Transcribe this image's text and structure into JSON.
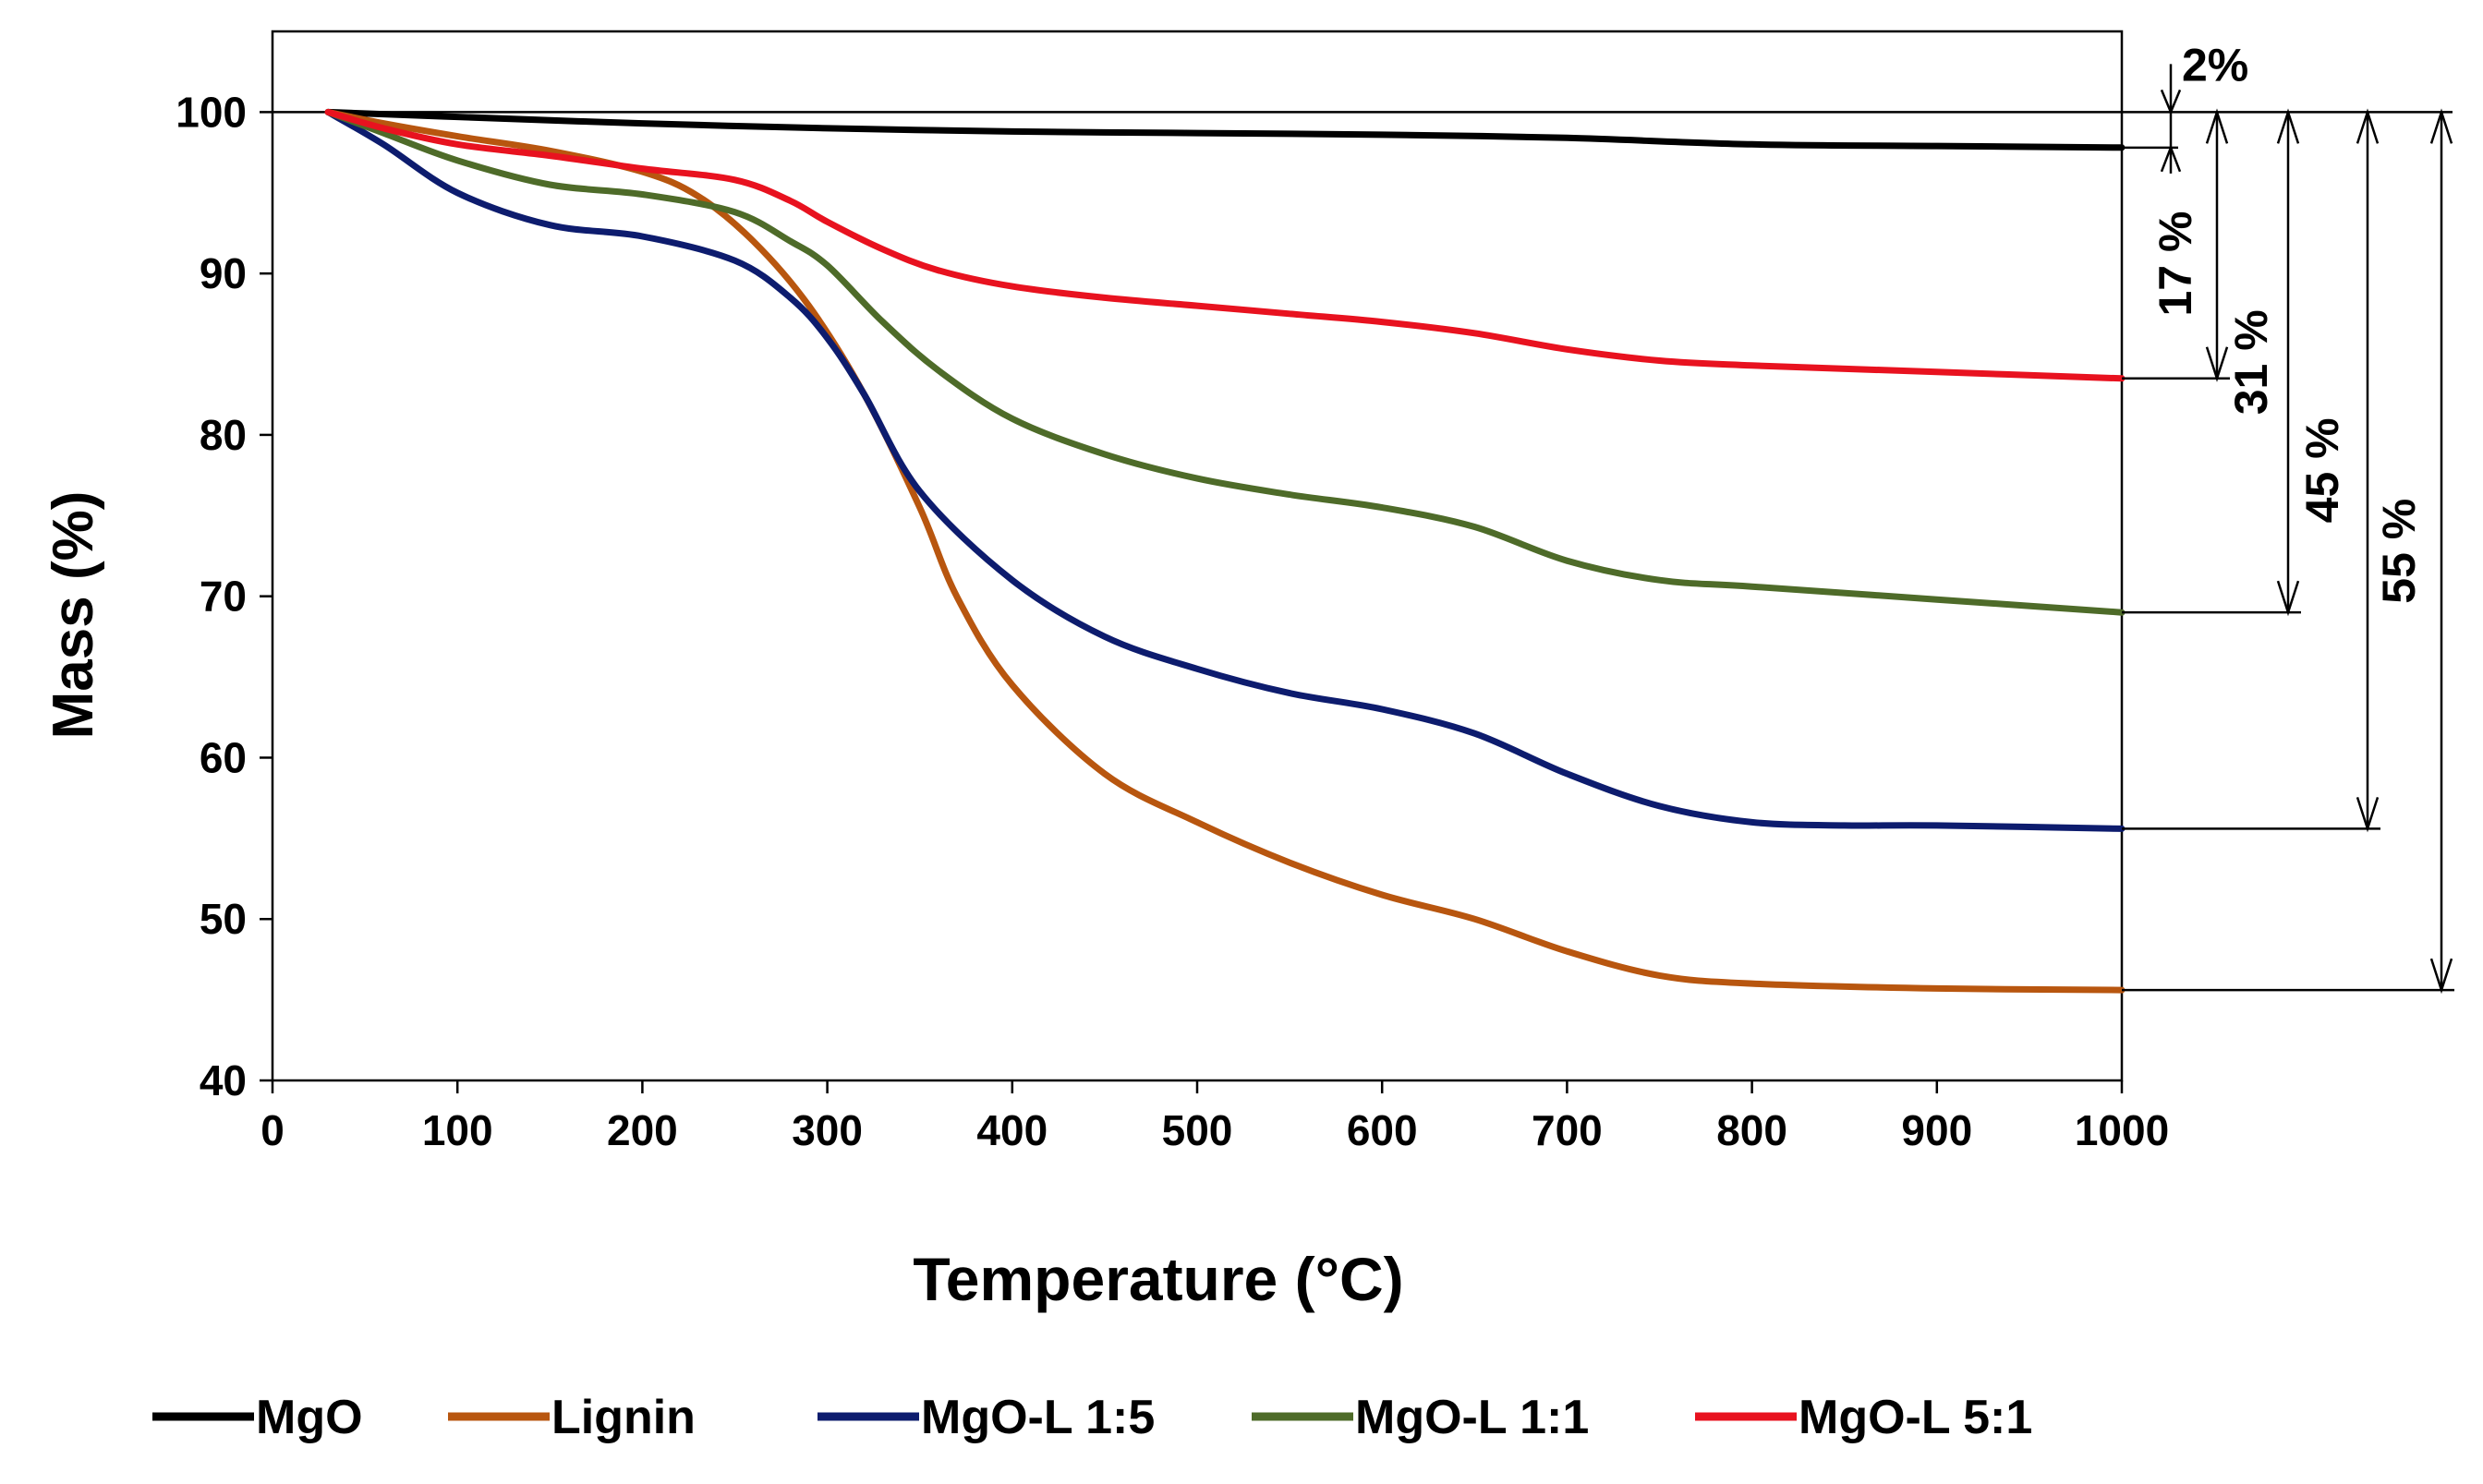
{
  "chart_data": {
    "type": "line",
    "title": "",
    "xlabel": "Temperature (°C)",
    "ylabel": "Mass (%)",
    "xlim": [
      0,
      1000
    ],
    "ylim": [
      40,
      105
    ],
    "xticks": [
      0,
      100,
      200,
      300,
      400,
      500,
      600,
      700,
      800,
      900,
      1000
    ],
    "yticks": [
      40,
      50,
      60,
      70,
      80,
      90,
      100
    ],
    "xtick_labels": [
      "0",
      "100",
      "200",
      "300",
      "400",
      "500",
      "600",
      "700",
      "800",
      "900",
      "1000"
    ],
    "ytick_labels": [
      "40",
      "50",
      "60",
      "70",
      "80",
      "90",
      "100"
    ],
    "grid": false,
    "legend_position": "bottom",
    "series": [
      {
        "name": "MgO",
        "color": "#000000",
        "x": [
          30,
          100,
          200,
          300,
          400,
          500,
          600,
          700,
          800,
          900,
          1000
        ],
        "y": [
          100,
          99.7,
          99.3,
          99.0,
          98.8,
          98.7,
          98.6,
          98.4,
          98.0,
          97.9,
          97.8
        ]
      },
      {
        "name": "Lignin",
        "color": "#B8560F",
        "x": [
          30,
          60,
          100,
          150,
          200,
          230,
          260,
          290,
          320,
          350,
          370,
          400,
          450,
          500,
          550,
          600,
          650,
          700,
          750,
          800,
          900,
          1000
        ],
        "y": [
          100,
          99.3,
          98.5,
          97.6,
          96.3,
          94.8,
          92.0,
          88.0,
          82.5,
          75.5,
          70.0,
          64.5,
          59.0,
          56.0,
          53.5,
          51.5,
          50.0,
          48.0,
          46.5,
          46.0,
          45.7,
          45.6
        ]
      },
      {
        "name": "MgO-L 1:5",
        "color": "#0D1C6E",
        "x": [
          30,
          60,
          100,
          150,
          200,
          250,
          280,
          300,
          320,
          350,
          400,
          450,
          500,
          550,
          600,
          650,
          700,
          750,
          800,
          850,
          900,
          1000
        ],
        "y": [
          100,
          98.0,
          95.0,
          93.0,
          92.3,
          90.8,
          88.5,
          86.0,
          82.5,
          76.5,
          71.0,
          67.5,
          65.5,
          64.0,
          63.0,
          61.5,
          59.0,
          57.0,
          56.0,
          55.8,
          55.8,
          55.6
        ]
      },
      {
        "name": "MgO-L 1:1",
        "color": "#4E6B29",
        "x": [
          30,
          60,
          100,
          150,
          200,
          250,
          280,
          300,
          330,
          360,
          400,
          450,
          500,
          550,
          600,
          650,
          700,
          750,
          800,
          900,
          1000
        ],
        "y": [
          100,
          98.7,
          97.0,
          95.5,
          94.9,
          93.8,
          92.0,
          90.5,
          87.0,
          84.0,
          81.0,
          78.8,
          77.3,
          76.3,
          75.5,
          74.3,
          72.2,
          71.0,
          70.6,
          69.8,
          69.0
        ]
      },
      {
        "name": "MgO-L 5:1",
        "color": "#E8121F",
        "x": [
          30,
          60,
          100,
          150,
          200,
          250,
          280,
          300,
          330,
          360,
          400,
          450,
          500,
          550,
          600,
          650,
          700,
          750,
          800,
          900,
          1000
        ],
        "y": [
          100,
          99.0,
          98.0,
          97.3,
          96.5,
          95.8,
          94.5,
          93.2,
          91.5,
          90.2,
          89.2,
          88.5,
          88.0,
          87.5,
          87.0,
          86.3,
          85.3,
          84.6,
          84.3,
          83.9,
          83.5
        ]
      }
    ],
    "annotations": [
      {
        "label": "2%",
        "from": 100,
        "to": 97.8
      },
      {
        "label": "17 %",
        "from": 100,
        "to": 83.5
      },
      {
        "label": "31 %",
        "from": 100,
        "to": 69.0
      },
      {
        "label": "45 %",
        "from": 100,
        "to": 55.6
      },
      {
        "label": "55 %",
        "from": 100,
        "to": 45.6
      }
    ]
  }
}
